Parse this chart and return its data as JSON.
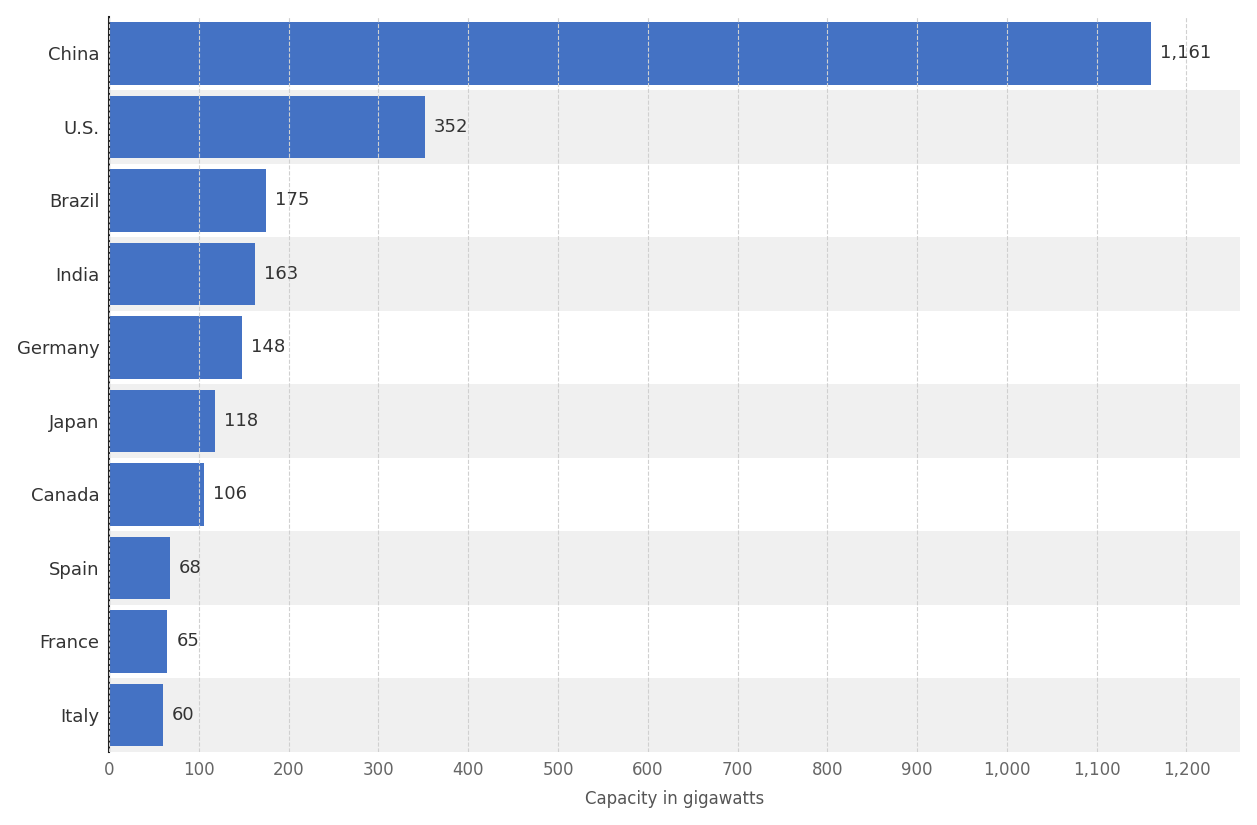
{
  "categories": [
    "China",
    "U.S.",
    "Brazil",
    "India",
    "Germany",
    "Japan",
    "Canada",
    "Spain",
    "France",
    "Italy"
  ],
  "values": [
    1161,
    352,
    175,
    163,
    148,
    118,
    106,
    68,
    65,
    60
  ],
  "bar_color": "#4472c4",
  "background_color": "#ffffff",
  "row_colors": [
    "#ffffff",
    "#f0f0f0"
  ],
  "xlabel": "Capacity in gigawatts",
  "xlim": [
    0,
    1260
  ],
  "xticks": [
    0,
    100,
    200,
    300,
    400,
    500,
    600,
    700,
    800,
    900,
    1000,
    1100,
    1200
  ],
  "xtick_labels": [
    "0",
    "100",
    "200",
    "300",
    "400",
    "500",
    "600",
    "700",
    "800",
    "900",
    "1,000",
    "1,100",
    "1,200"
  ],
  "label_fontsize": 13,
  "tick_fontsize": 12,
  "xlabel_fontsize": 12,
  "value_fontsize": 13,
  "bar_height": 0.85,
  "grid_color": "#d0d0d0",
  "value_color": "#333333",
  "ylabel_color": "#333333",
  "xlabel_color": "#555555",
  "spine_color": "#222222"
}
